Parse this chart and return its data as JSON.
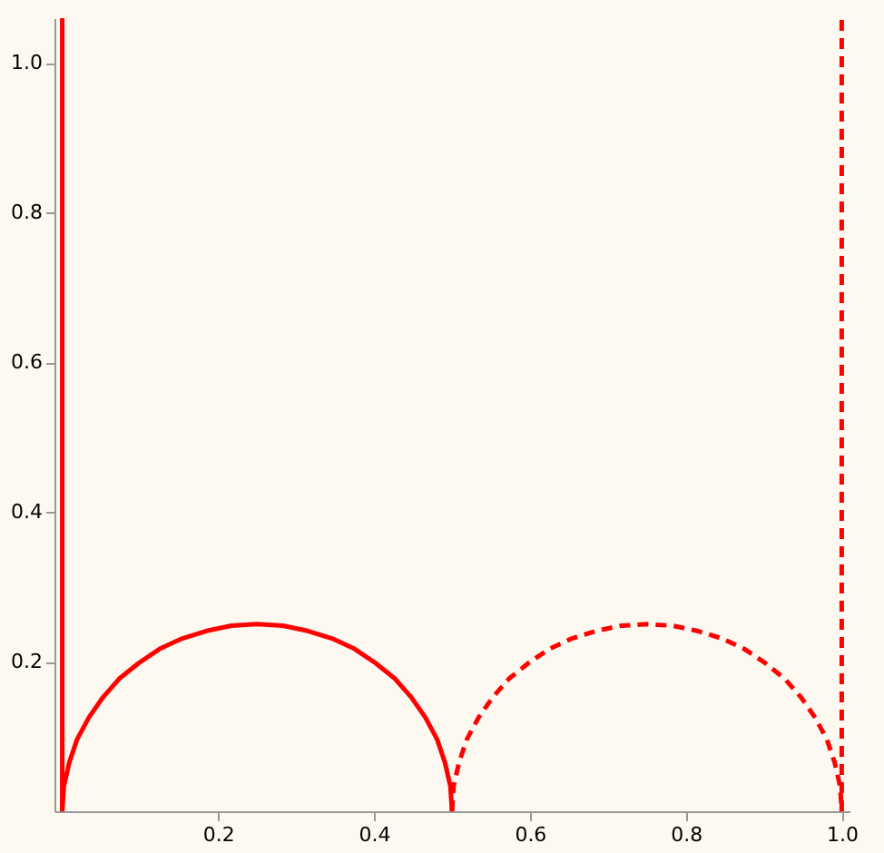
{
  "chart_data": {
    "type": "line",
    "xlim": [
      -0.01,
      1.01
    ],
    "ylim": [
      0,
      1.06
    ],
    "xticks": [
      0.2,
      0.4,
      0.6,
      0.8,
      {
        "value": 1,
        "label": "1.0"
      }
    ],
    "yticks": [
      0.2,
      0.4,
      0.6,
      0.8,
      {
        "value": 1,
        "label": "1.0"
      }
    ],
    "grid": false,
    "series": [
      {
        "color": "#ff0000",
        "line_style": "solid",
        "x": [
          0,
          0
        ],
        "values": [
          0,
          1.06
        ]
      },
      {
        "color": "#ff0000",
        "line_style": "solid",
        "x": [
          0,
          0.002,
          0.009,
          0.019,
          0.034,
          0.052,
          0.073,
          0.098,
          0.125,
          0.154,
          0.185,
          0.217,
          0.25,
          0.283,
          0.315,
          0.346,
          0.375,
          0.402,
          0.427,
          0.448,
          0.466,
          0.481,
          0.491,
          0.498,
          0.5
        ],
        "values": [
          0,
          0.033,
          0.065,
          0.096,
          0.125,
          0.152,
          0.177,
          0.198,
          0.217,
          0.231,
          0.241,
          0.248,
          0.25,
          0.248,
          0.241,
          0.231,
          0.217,
          0.198,
          0.177,
          0.152,
          0.125,
          0.096,
          0.065,
          0.033,
          0
        ]
      },
      {
        "color": "#ff0000",
        "line_style": "dashed",
        "x": [
          0.5,
          0.502,
          0.509,
          0.519,
          0.534,
          0.552,
          0.573,
          0.598,
          0.625,
          0.654,
          0.685,
          0.717,
          0.75,
          0.783,
          0.815,
          0.846,
          0.875,
          0.902,
          0.927,
          0.948,
          0.966,
          0.981,
          0.991,
          0.998,
          1
        ],
        "values": [
          0,
          0.033,
          0.065,
          0.096,
          0.125,
          0.152,
          0.177,
          0.198,
          0.217,
          0.231,
          0.241,
          0.248,
          0.25,
          0.248,
          0.241,
          0.231,
          0.217,
          0.198,
          0.177,
          0.152,
          0.125,
          0.096,
          0.065,
          0.033,
          0
        ]
      },
      {
        "color": "#ff0000",
        "line_style": "dashed",
        "x": [
          1,
          1
        ],
        "values": [
          0,
          1.06
        ]
      }
    ]
  }
}
